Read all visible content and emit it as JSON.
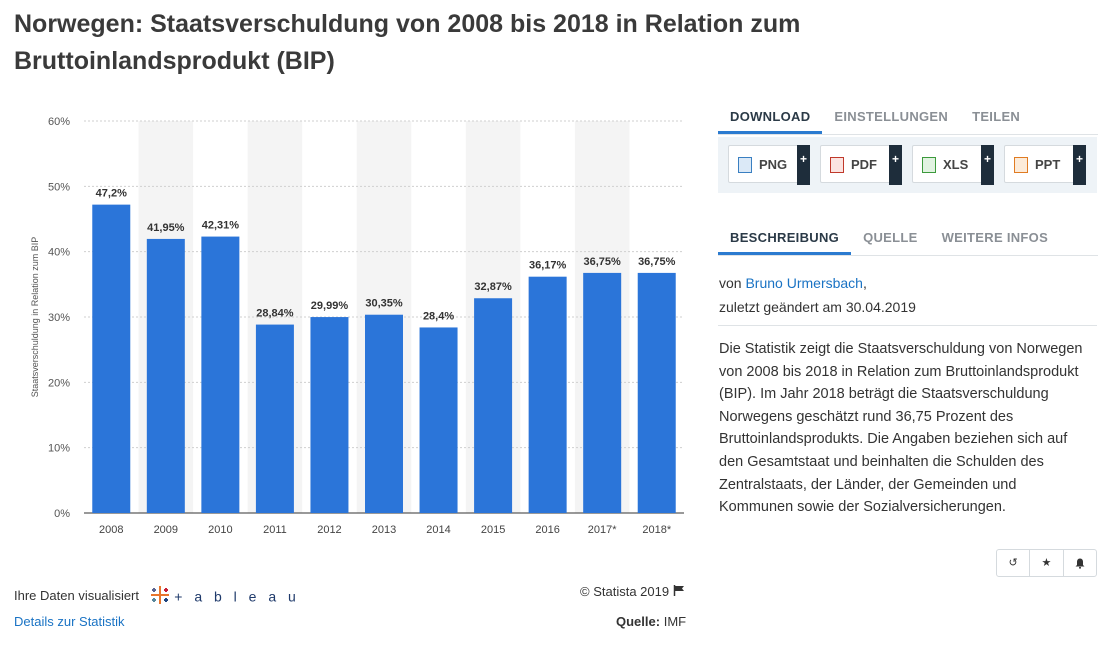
{
  "page": {
    "title": "Norwegen: Staatsverschuldung von 2008 bis 2018 in Relation zum Bruttoinlandsprodukt (BIP)"
  },
  "chart_data": {
    "type": "bar",
    "categories": [
      "2008",
      "2009",
      "2010",
      "2011",
      "2012",
      "2013",
      "2014",
      "2015",
      "2016",
      "2017*",
      "2018*"
    ],
    "values": [
      47.2,
      41.95,
      42.31,
      28.84,
      29.99,
      30.35,
      28.4,
      32.87,
      36.17,
      36.75,
      36.75
    ],
    "value_labels": [
      "47,2%",
      "41,95%",
      "42,31%",
      "28,84%",
      "29,99%",
      "30,35%",
      "28,4%",
      "32,87%",
      "36,17%",
      "36,75%",
      "36,75%"
    ],
    "ylabel": "Staatsverschuldung in Relation zum BIP",
    "ylim": [
      0,
      60
    ],
    "yticks": [
      0,
      10,
      20,
      30,
      40,
      50,
      60
    ],
    "ytick_labels": [
      "0%",
      "10%",
      "20%",
      "30%",
      "40%",
      "50%",
      "60%"
    ],
    "grid": true,
    "bar_color": "#2b75d9"
  },
  "footer": {
    "visualized_text": "Ihre Daten visualisiert",
    "tableau_text": "+ a b l e a u",
    "details_link": "Details zur Statistik",
    "copyright": "© Statista 2019",
    "source_label": "Quelle:",
    "source_value": "IMF"
  },
  "download": {
    "tabs": [
      "DOWNLOAD",
      "EINSTELLUNGEN",
      "TEILEN"
    ],
    "buttons": [
      {
        "label": "PNG",
        "color": "#3a7fc1"
      },
      {
        "label": "PDF",
        "color": "#c0392b"
      },
      {
        "label": "XLS",
        "color": "#3c9a3c"
      },
      {
        "label": "PPT",
        "color": "#e07b22"
      }
    ],
    "plus": "+"
  },
  "info": {
    "tabs": [
      "BESCHREIBUNG",
      "QUELLE",
      "WEITERE INFOS"
    ],
    "by_prefix": "von ",
    "author": "Bruno Urmersbach",
    "by_suffix": ",",
    "updated": "zuletzt geändert am 30.04.2019",
    "description": "Die Statistik zeigt die Staatsverschuldung von Norwegen von 2008 bis 2018 in Relation zum Bruttoinlandsprodukt (BIP). Im Jahr 2018 beträgt die Staatsverschuldung Norwegens geschätzt rund 36,75 Prozent des Bruttoinlandsprodukts. Die Angaben beziehen sich auf den Gesamtstaat und beinhalten die Schulden des Zentralstaats, der Länder, der Gemeinden und Kommunen sowie der Sozialversicherungen."
  },
  "actions": {
    "history": "↺",
    "star": "★",
    "bell": "🔔"
  }
}
